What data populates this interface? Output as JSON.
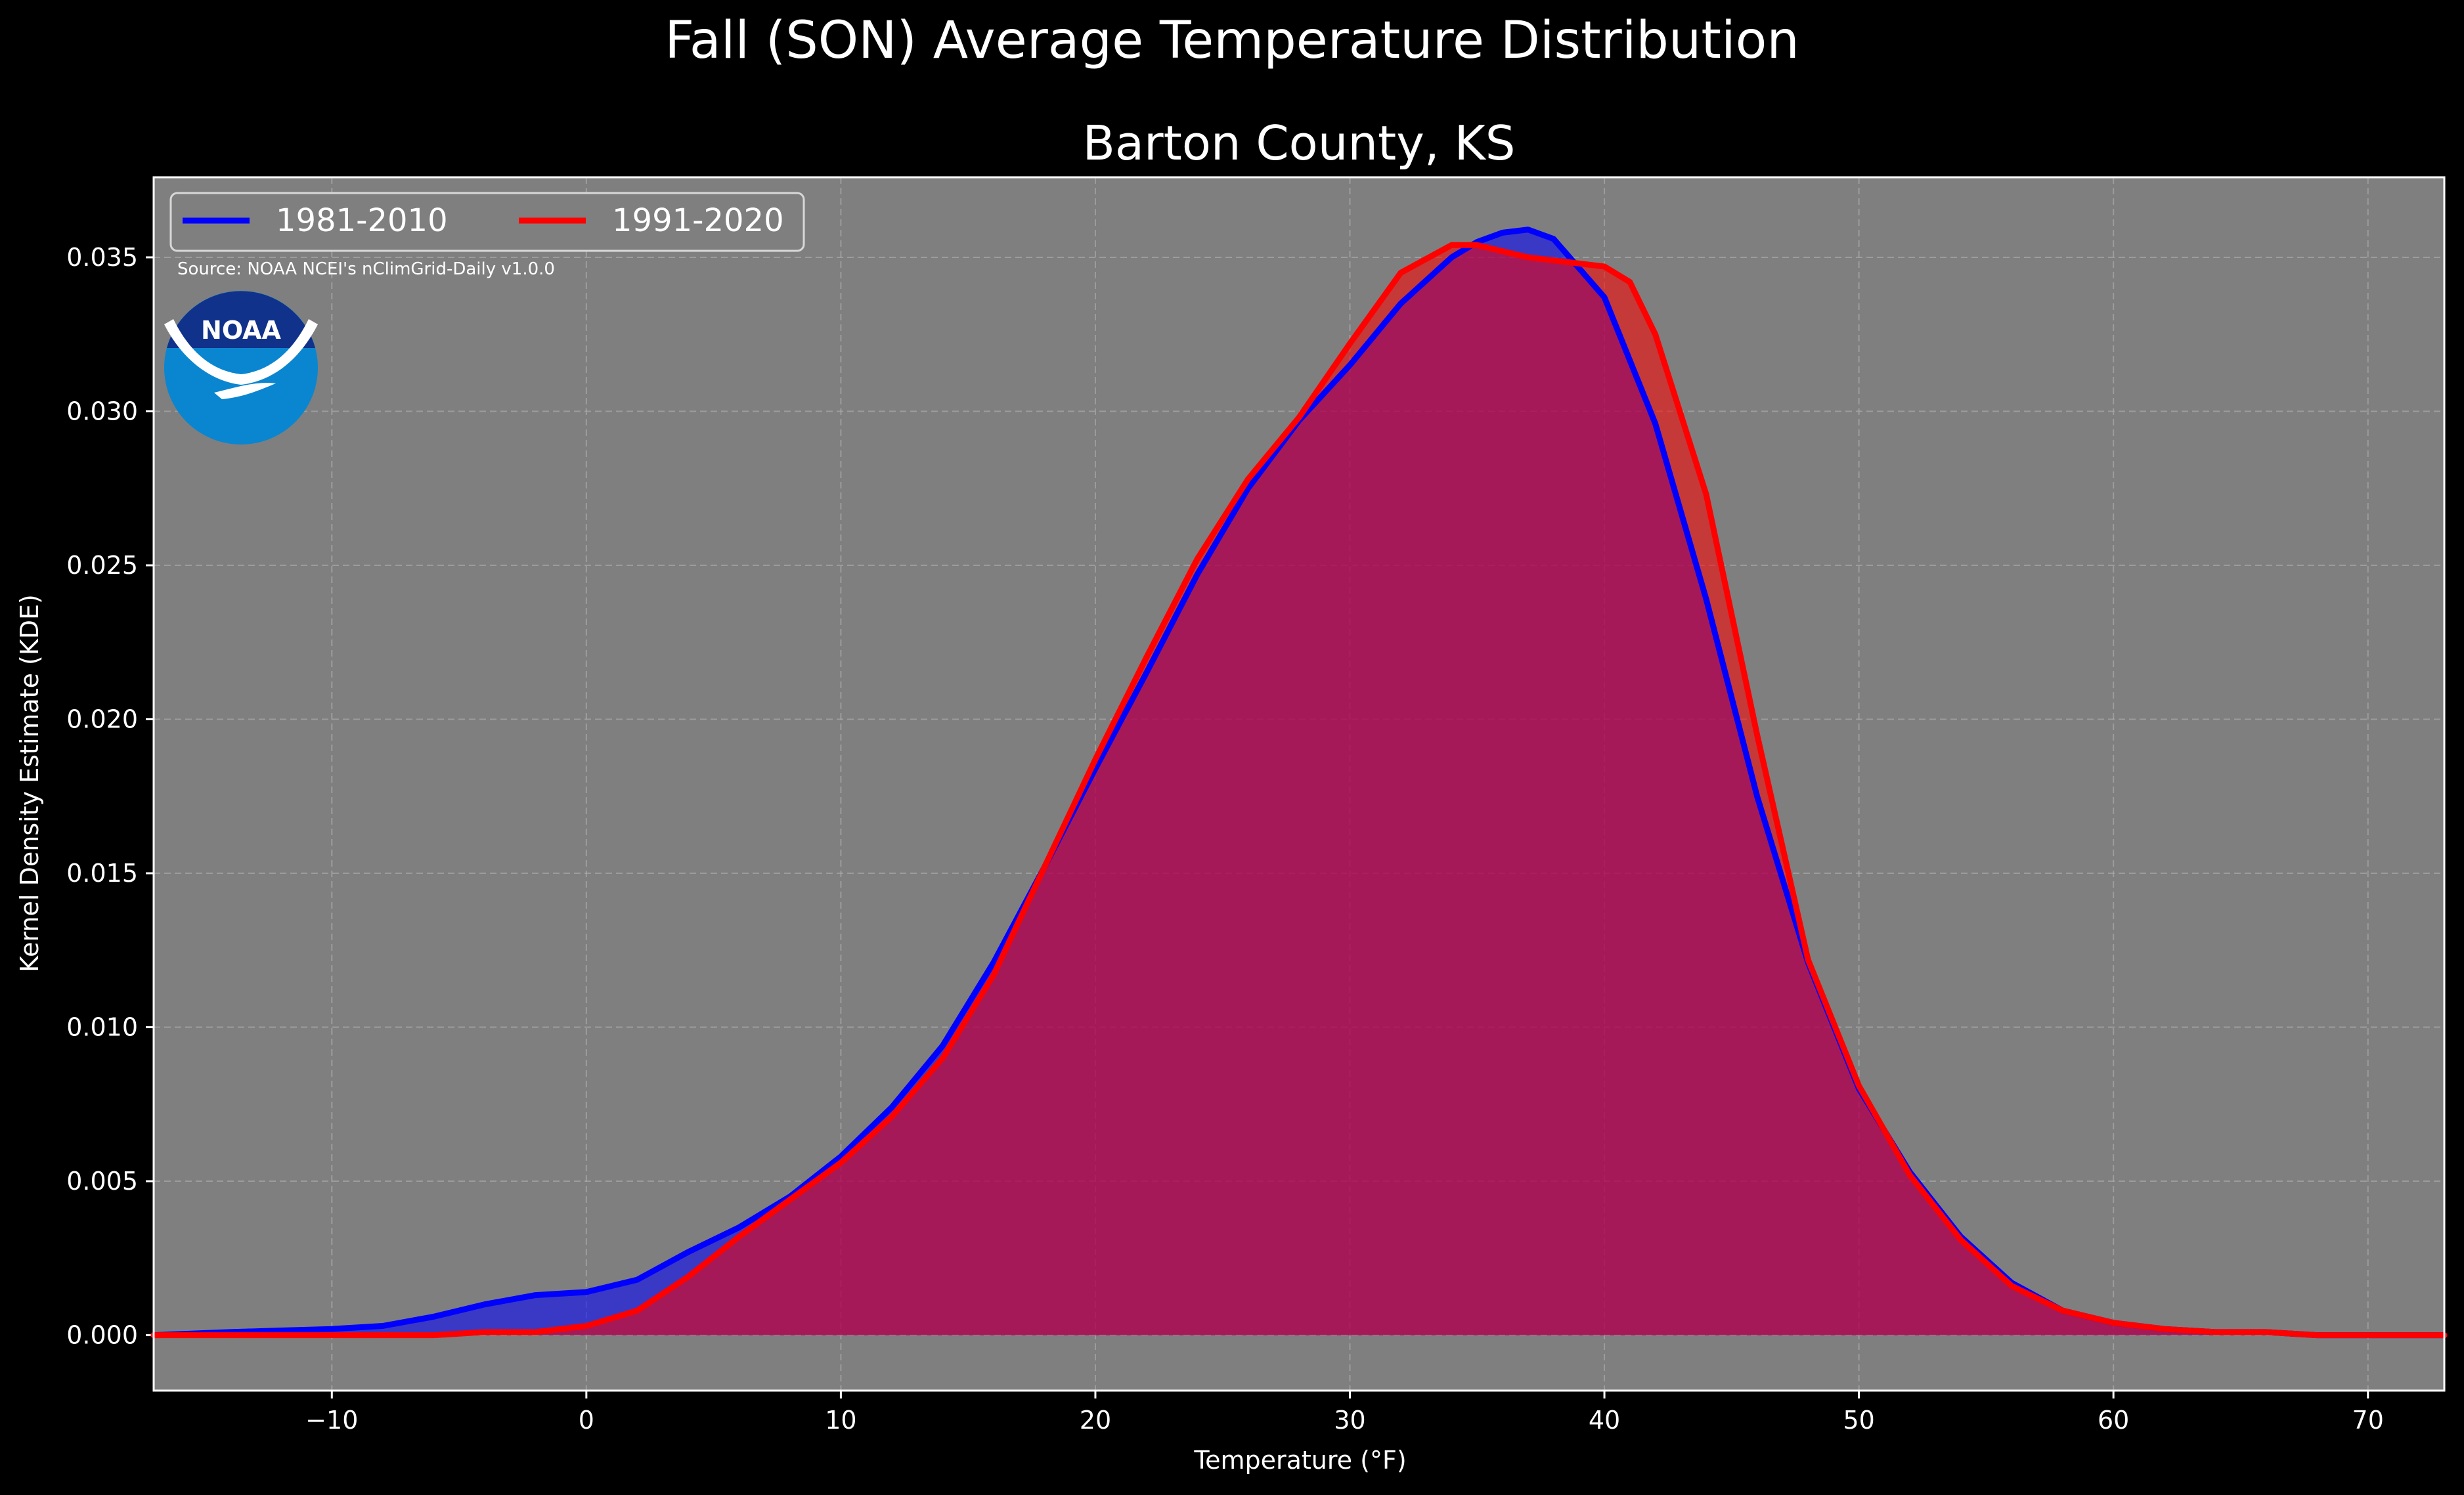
{
  "chart_data": {
    "type": "area",
    "title": "Fall (SON) Average Temperature Distribution",
    "subtitle": "Barton County, KS",
    "xlabel": "Temperature (°F)",
    "ylabel": "Kernel Density Estimate (KDE)",
    "xlim": [
      -17,
      73
    ],
    "ylim": [
      -0.0018,
      0.0376
    ],
    "x_ticks": [
      -10,
      0,
      10,
      20,
      30,
      40,
      50,
      60,
      70
    ],
    "x_tick_labels": [
      "−10",
      "0",
      "10",
      "20",
      "30",
      "40",
      "50",
      "60",
      "70"
    ],
    "y_ticks": [
      0,
      0.005,
      0.01,
      0.015,
      0.02,
      0.025,
      0.03,
      0.035
    ],
    "y_tick_labels": [
      "0.000",
      "0.005",
      "0.010",
      "0.015",
      "0.020",
      "0.025",
      "0.030",
      "0.035"
    ],
    "grid": true,
    "legend_position": "top-left",
    "annotation": "Source: NOAA NCEI's nClimGrid-Daily v1.0.0",
    "logo_text": "NOAA",
    "series": [
      {
        "name": "1981-2010",
        "color": "#0000ff",
        "x": [
          -17,
          -14,
          -12,
          -10,
          -8,
          -6,
          -4,
          -2,
          0,
          2,
          4,
          6,
          8,
          10,
          12,
          14,
          16,
          18,
          20,
          22,
          24,
          26,
          28,
          30,
          32,
          34,
          35,
          36,
          37,
          38,
          40,
          42,
          44,
          46,
          48,
          50,
          52,
          54,
          56,
          58,
          60,
          62,
          64,
          66,
          68,
          70,
          73
        ],
        "y": [
          0.0,
          0.0001,
          0.00015,
          0.0002,
          0.0003,
          0.0006,
          0.001,
          0.0013,
          0.0014,
          0.0018,
          0.0027,
          0.0035,
          0.0045,
          0.0058,
          0.0074,
          0.0094,
          0.0121,
          0.0152,
          0.0184,
          0.0215,
          0.0247,
          0.0275,
          0.0297,
          0.0315,
          0.0335,
          0.035,
          0.0355,
          0.0358,
          0.0359,
          0.0356,
          0.0337,
          0.0296,
          0.0239,
          0.0175,
          0.0121,
          0.008,
          0.0053,
          0.0032,
          0.0017,
          0.0008,
          0.0004,
          0.0002,
          0.0001,
          0.0001,
          0.0,
          0.0,
          0.0
        ]
      },
      {
        "name": "1991-2020",
        "color": "#ff0000",
        "x": [
          -17,
          -14,
          -12,
          -10,
          -8,
          -6,
          -4,
          -2,
          0,
          2,
          4,
          6,
          8,
          10,
          12,
          14,
          16,
          18,
          20,
          22,
          24,
          26,
          28,
          30,
          32,
          34,
          35,
          36,
          37,
          38,
          39,
          40,
          41,
          42,
          44,
          46,
          48,
          50,
          52,
          54,
          56,
          58,
          60,
          62,
          64,
          66,
          68,
          70,
          73
        ],
        "y": [
          0.0,
          0.0,
          0.0,
          0.0,
          0.0,
          0.0,
          0.0001,
          0.0001,
          0.0003,
          0.0008,
          0.0019,
          0.0032,
          0.0044,
          0.0056,
          0.0071,
          0.009,
          0.0117,
          0.0152,
          0.0187,
          0.022,
          0.0252,
          0.0278,
          0.0298,
          0.0322,
          0.0345,
          0.0354,
          0.0354,
          0.0352,
          0.035,
          0.0349,
          0.0348,
          0.0347,
          0.0342,
          0.0325,
          0.0273,
          0.0195,
          0.0122,
          0.0081,
          0.0052,
          0.0031,
          0.0016,
          0.0008,
          0.0004,
          0.0002,
          0.0001,
          0.0001,
          0.0,
          0.0,
          0.0
        ]
      }
    ]
  }
}
